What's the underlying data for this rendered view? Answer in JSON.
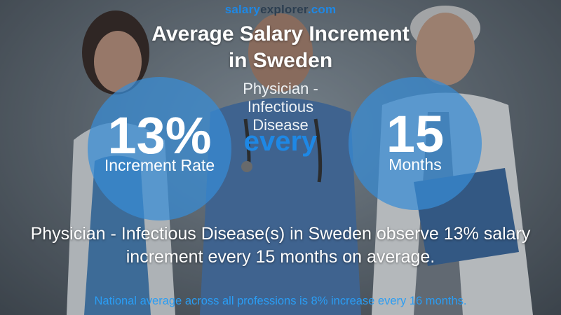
{
  "brand": {
    "part1": "salary",
    "part2": "explorer",
    "part3": ".com"
  },
  "title": {
    "line1": "Average Salary Increment",
    "line2": "in Sweden"
  },
  "job": {
    "line1": "Physician -",
    "line2": "Infectious",
    "line3": "Disease"
  },
  "every_label": "every",
  "increment": {
    "value": "13%",
    "label": "Increment Rate"
  },
  "period": {
    "value": "15",
    "label": "Months"
  },
  "summary": {
    "line1": "Physician - Infectious Disease(s) in Sweden observe 13% salary",
    "line2": "increment every 15 months on average."
  },
  "national_note": "National average across all professions is 8% increase every 16 months.",
  "colors": {
    "accent": "#1e88e5",
    "circle": "#388cd6"
  }
}
